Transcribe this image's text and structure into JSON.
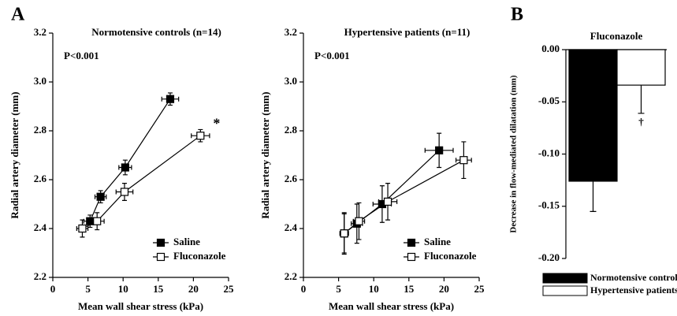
{
  "chart_data": [
    {
      "type": "line",
      "panel": "A",
      "title": "Normotensive controls (n=14)",
      "annotation": "P<0.001",
      "star": "*",
      "xlabel": "Mean wall shear stress (kPa)",
      "ylabel": "Radial artery diameter (mm)",
      "xlim": [
        0,
        25
      ],
      "xticks": [
        0,
        5,
        10,
        15,
        20,
        25
      ],
      "ylim": [
        2.2,
        3.2
      ],
      "yticks": [
        2.2,
        2.4,
        2.6,
        2.8,
        {
          "value": 3,
          "label": "3.0"
        },
        3.2
      ],
      "legend": "lower right",
      "series": [
        {
          "name": "Saline",
          "color": "#000000",
          "x": [
            5.3,
            6.8,
            10.3,
            16.7
          ],
          "values": [
            2.43,
            2.53,
            2.65,
            2.93
          ],
          "xerr": [
            0.9,
            0.8,
            0.9,
            1.2
          ],
          "yerr": [
            0.025,
            0.025,
            0.03,
            0.025
          ]
        },
        {
          "name": "Fluconazole",
          "color": "#ffffff",
          "x": [
            4.2,
            6.3,
            10.2,
            21.0
          ],
          "values": [
            2.4,
            2.43,
            2.55,
            2.78
          ],
          "xerr": [
            0.8,
            1.0,
            1.2,
            1.3
          ],
          "yerr": [
            0.035,
            0.035,
            0.035,
            0.025
          ]
        }
      ]
    },
    {
      "type": "line",
      "title": "Hypertensive patients (n=11)",
      "annotation": "P<0.001",
      "xlabel": "Mean wall shear stress (kPa)",
      "ylabel": "Radial artery diameter (mm)",
      "xlim": [
        0,
        25
      ],
      "xticks": [
        0,
        5,
        10,
        15,
        20,
        25
      ],
      "ylim": [
        2.2,
        3.2
      ],
      "yticks": [
        2.2,
        2.4,
        2.6,
        2.8,
        {
          "value": 3,
          "label": "3.0"
        },
        3.2
      ],
      "legend": "lower right",
      "series": [
        {
          "name": "Saline",
          "color": "#000000",
          "x": [
            5.8,
            7.6,
            11.2,
            19.3
          ],
          "values": [
            2.38,
            2.42,
            2.5,
            2.72
          ],
          "xerr": [
            0.6,
            0.8,
            1.3,
            2.0
          ],
          "yerr": [
            0.08,
            0.08,
            0.075,
            0.07
          ]
        },
        {
          "name": "Fluconazole",
          "color": "#ffffff",
          "x": [
            5.8,
            7.9,
            12.0,
            22.8
          ],
          "values": [
            2.38,
            2.43,
            2.51,
            2.68
          ],
          "xerr": [
            0.6,
            0.8,
            1.3,
            1.1
          ],
          "yerr": [
            0.085,
            0.075,
            0.075,
            0.075
          ]
        }
      ]
    },
    {
      "type": "bar",
      "panel": "B",
      "title": "Fluconazole",
      "dagger": "†",
      "ylabel": "Decrease in flow-mediated dilatation (mm)",
      "ylim": [
        -0.2,
        0
      ],
      "yticks": [
        {
          "value": 0,
          "label": "0.00"
        },
        {
          "value": -0.05,
          "label": "-0.05"
        },
        {
          "value": -0.1,
          "label": "-0.10"
        },
        {
          "value": -0.15,
          "label": "-0.15"
        },
        {
          "value": -0.2,
          "label": "-0.20"
        }
      ],
      "legend": "below",
      "series": [
        {
          "name": "Normotensive controls",
          "color": "#000000",
          "values": [
            -0.126
          ],
          "err": [
            0.029
          ]
        },
        {
          "name": "Hypertensive patients",
          "color": "#ffffff",
          "values": [
            -0.034
          ],
          "err": [
            0.027
          ]
        }
      ]
    }
  ]
}
